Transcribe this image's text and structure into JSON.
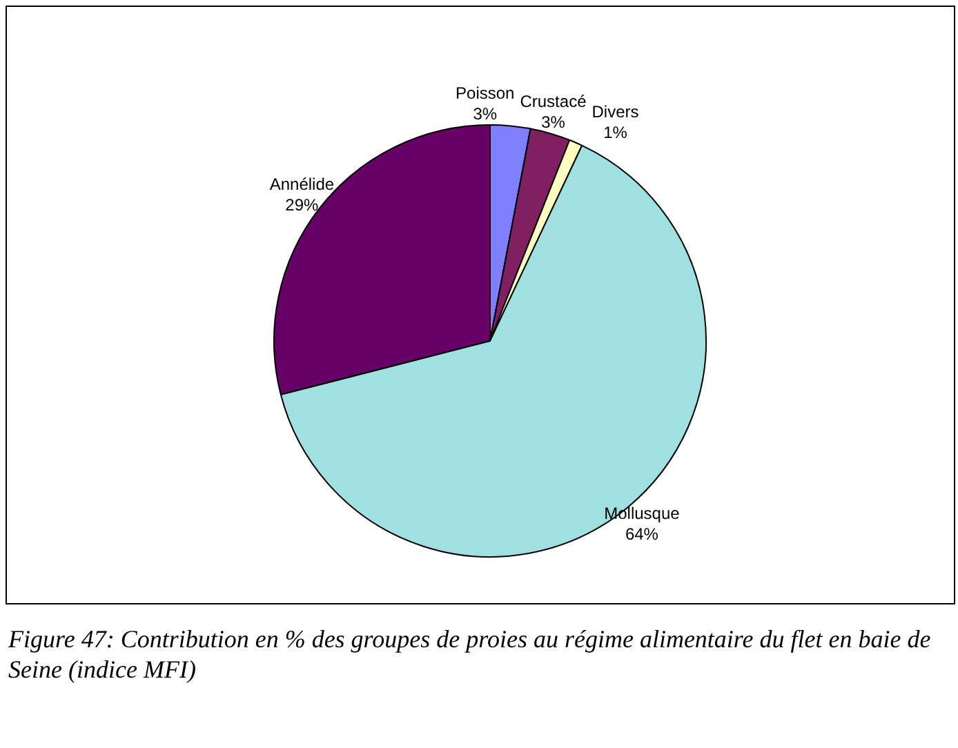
{
  "chart_data": {
    "type": "pie",
    "categories": [
      "Poisson",
      "Crustacé",
      "Divers",
      "Mollusque",
      "Annélide"
    ],
    "values": [
      3,
      3,
      1,
      64,
      29
    ],
    "value_labels": [
      "3%",
      "3%",
      "1%",
      "64%",
      "29%"
    ],
    "colors": [
      "#8080ff",
      "#802060",
      "#ffffc0",
      "#a0e0e0",
      "#660066"
    ],
    "legend": false,
    "annotations": [
      "Figure 47: Contribution en % des groupes de proies au régime alimentaire du flet en baie de Seine (indice MFI)"
    ]
  }
}
